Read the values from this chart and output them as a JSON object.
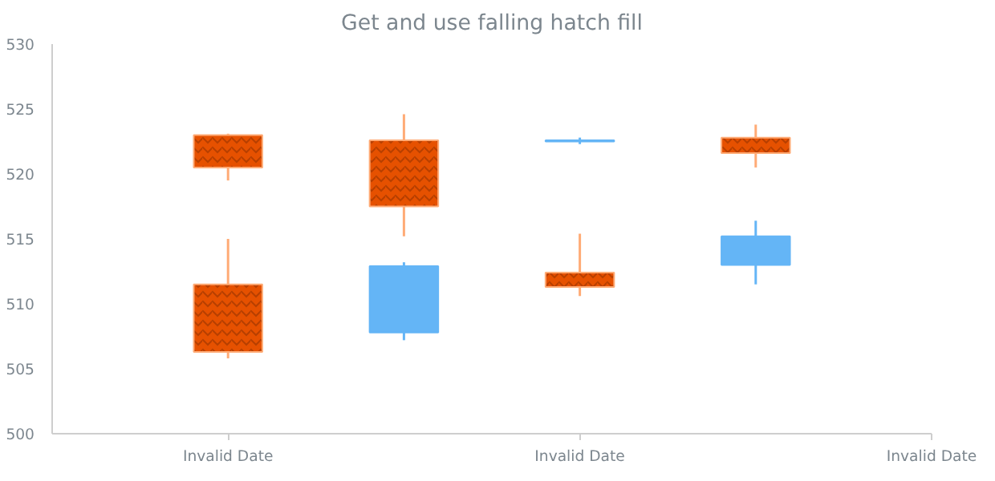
{
  "chart_data": {
    "type": "candlestick",
    "title": "Get and use falling hatch fill",
    "categories": [
      "Invalid Date",
      null,
      "Invalid Date",
      null,
      "Invalid Date"
    ],
    "series": [
      {
        "colors": [
          "#e65100",
          "#e65100",
          "#64b5f6",
          "#e65100",
          null
        ],
        "ohlc": [
          [
            523.0,
            523.1,
            519.5,
            520.5
          ],
          [
            522.6,
            524.6,
            515.2,
            517.5
          ],
          [
            522.5,
            522.8,
            522.3,
            522.6
          ],
          [
            522.8,
            523.8,
            520.5,
            521.6
          ],
          null
        ]
      },
      {
        "colors": [
          "#e65100",
          "#64b5f6",
          "#e65100",
          "#64b5f6",
          null
        ],
        "ohlc": [
          [
            511.5,
            515.0,
            505.8,
            506.3
          ],
          [
            507.8,
            513.2,
            507.2,
            512.9
          ],
          [
            512.4,
            515.4,
            510.6,
            511.3
          ],
          [
            513.0,
            516.4,
            511.5,
            515.2
          ],
          null
        ]
      }
    ],
    "ylim": [
      500,
      530
    ],
    "yticks": [
      500,
      505,
      510,
      515,
      520,
      525,
      530
    ],
    "grid": false
  }
}
